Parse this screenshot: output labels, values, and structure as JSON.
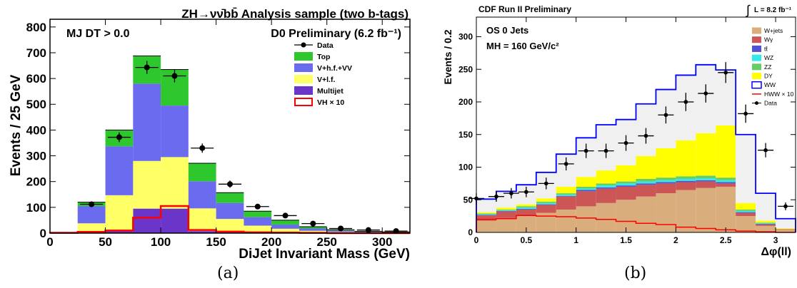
{
  "chart_data": [
    {
      "type": "bar",
      "stacked": true,
      "title": "ZH→νν̄bb̄ Analysis sample (two b-tags)",
      "xlabel": "DiJet Invariant Mass (GeV)",
      "ylabel": "Events / 25 GeV",
      "xlim": [
        0,
        325
      ],
      "ylim": [
        0,
        830
      ],
      "xticks": [
        0,
        50,
        100,
        150,
        200,
        250,
        300
      ],
      "yticks": [
        0,
        100,
        200,
        300,
        400,
        500,
        600,
        700,
        800
      ],
      "annotations": [
        "MJ DT > 0.0",
        "D0 Preliminary (6.2 fb⁻¹)"
      ],
      "legend_position": "top-right",
      "bin_edges": [
        0,
        25,
        50,
        75,
        100,
        125,
        150,
        175,
        200,
        225,
        250,
        275,
        300,
        325
      ],
      "series": [
        {
          "name": "Multijet",
          "color": "#6a35c8",
          "values": [
            0,
            8,
            12,
            95,
            95,
            8,
            5,
            4,
            2,
            1,
            1,
            0,
            0
          ]
        },
        {
          "name": "V+l.f.",
          "color": "#ffff66",
          "values": [
            0,
            30,
            135,
            185,
            200,
            88,
            50,
            25,
            15,
            8,
            4,
            2,
            1
          ]
        },
        {
          "name": "V+h.f.+VV",
          "color": "#6b6bf0",
          "values": [
            2,
            67,
            190,
            300,
            200,
            105,
            62,
            33,
            16,
            9,
            5,
            3,
            2
          ]
        },
        {
          "name": "Top",
          "color": "#2ec82e",
          "values": [
            1,
            15,
            63,
            108,
            140,
            70,
            40,
            23,
            17,
            7,
            3,
            2,
            2
          ]
        }
      ],
      "signal": {
        "name": "VH × 10",
        "color": "#ff0000",
        "values": [
          1,
          5,
          10,
          60,
          105,
          12,
          6,
          3,
          2,
          1,
          0,
          0,
          0
        ]
      },
      "data_series": {
        "name": "Data",
        "x": [
          37.5,
          62.5,
          87.5,
          112.5,
          137.5,
          162.5,
          187.5,
          212.5,
          237.5,
          262.5,
          287.5,
          312.5
        ],
        "y": [
          112,
          372,
          643,
          610,
          330,
          190,
          103,
          68,
          37,
          18,
          12,
          8
        ],
        "err": [
          11,
          19,
          25,
          25,
          18,
          14,
          10,
          8,
          6,
          4,
          3,
          3
        ]
      },
      "caption": "(a)"
    },
    {
      "type": "bar",
      "stacked": true,
      "title": "CDF Run II Preliminary",
      "luminosity": "L = 8.2 fb⁻¹",
      "xlabel": "Δφ(ll)",
      "ylabel": "Events / 0.2",
      "xlim": [
        0,
        3.2
      ],
      "ylim": [
        0,
        330
      ],
      "xticks": [
        0,
        0.5,
        1,
        1.5,
        2,
        2.5,
        3
      ],
      "yticks": [
        0,
        50,
        100,
        150,
        200,
        250,
        300
      ],
      "annotations": [
        "OS 0 Jets",
        "MH = 160 GeV/c²"
      ],
      "legend_position": "top-right",
      "bin_edges": [
        0,
        0.2,
        0.4,
        0.6,
        0.8,
        1.0,
        1.2,
        1.4,
        1.6,
        1.8,
        2.0,
        2.2,
        2.4,
        2.6,
        2.8,
        3.0,
        3.2
      ],
      "series": [
        {
          "name": "W+jets",
          "color": "#d9ad7c",
          "values": [
            18,
            22,
            25,
            30,
            35,
            40,
            45,
            50,
            55,
            60,
            65,
            68,
            70,
            25,
            10,
            4
          ]
        },
        {
          "name": "Wγ",
          "color": "#cc5555",
          "values": [
            8,
            10,
            10,
            12,
            20,
            23,
            22,
            20,
            18,
            15,
            12,
            10,
            5,
            5,
            2,
            1
          ]
        },
        {
          "name": "tt̄",
          "color": "#5050d0",
          "values": [
            1,
            1,
            1,
            1,
            1,
            2,
            2,
            2,
            2,
            2,
            2,
            2,
            2,
            1,
            1,
            0
          ]
        },
        {
          "name": "WZ",
          "color": "#33e8e8",
          "values": [
            1,
            1,
            2,
            2,
            2,
            2,
            3,
            3,
            3,
            3,
            3,
            3,
            3,
            2,
            1,
            0
          ]
        },
        {
          "name": "ZZ",
          "color": "#66cc66",
          "values": [
            1,
            1,
            2,
            2,
            2,
            3,
            3,
            3,
            4,
            4,
            4,
            4,
            4,
            2,
            1,
            0
          ]
        },
        {
          "name": "DY",
          "color": "#ffff00",
          "values": [
            2,
            3,
            3,
            5,
            10,
            15,
            20,
            25,
            35,
            45,
            55,
            65,
            80,
            10,
            3,
            1
          ]
        },
        {
          "name": "WW",
          "color": "#f0f0f0",
          "values": [
            20,
            25,
            30,
            40,
            50,
            60,
            70,
            70,
            80,
            90,
            100,
            105,
            85,
            105,
            42,
            15
          ]
        }
      ],
      "total_line": {
        "name": "WW",
        "color": "#0000ff",
        "values": [
          51,
          63,
          73,
          92,
          120,
          145,
          165,
          173,
          197,
          219,
          241,
          257,
          249,
          150,
          60,
          21
        ]
      },
      "signal": {
        "name": "HWW × 10",
        "color": "#ff0000",
        "values": [
          20,
          21,
          26,
          25,
          24,
          22,
          20,
          17,
          14,
          12,
          8,
          6,
          4,
          2,
          1,
          0
        ]
      },
      "data_series": {
        "name": "Data",
        "x": [
          0.0,
          0.2,
          0.35,
          0.5,
          0.7,
          0.9,
          1.1,
          1.3,
          1.5,
          1.7,
          1.9,
          2.1,
          2.3,
          2.5,
          2.7,
          2.9,
          3.1
        ],
        "y": [
          52,
          55,
          60,
          62,
          75,
          105,
          125,
          125,
          137,
          148,
          180,
          200,
          213,
          245,
          182,
          126,
          40
        ],
        "err": [
          8,
          8,
          8,
          8,
          9,
          10,
          11,
          11,
          12,
          12,
          13,
          14,
          14,
          16,
          14,
          11,
          6
        ]
      },
      "caption": "(b)"
    }
  ],
  "captions": {
    "a": "(a)",
    "b": "(b)"
  }
}
